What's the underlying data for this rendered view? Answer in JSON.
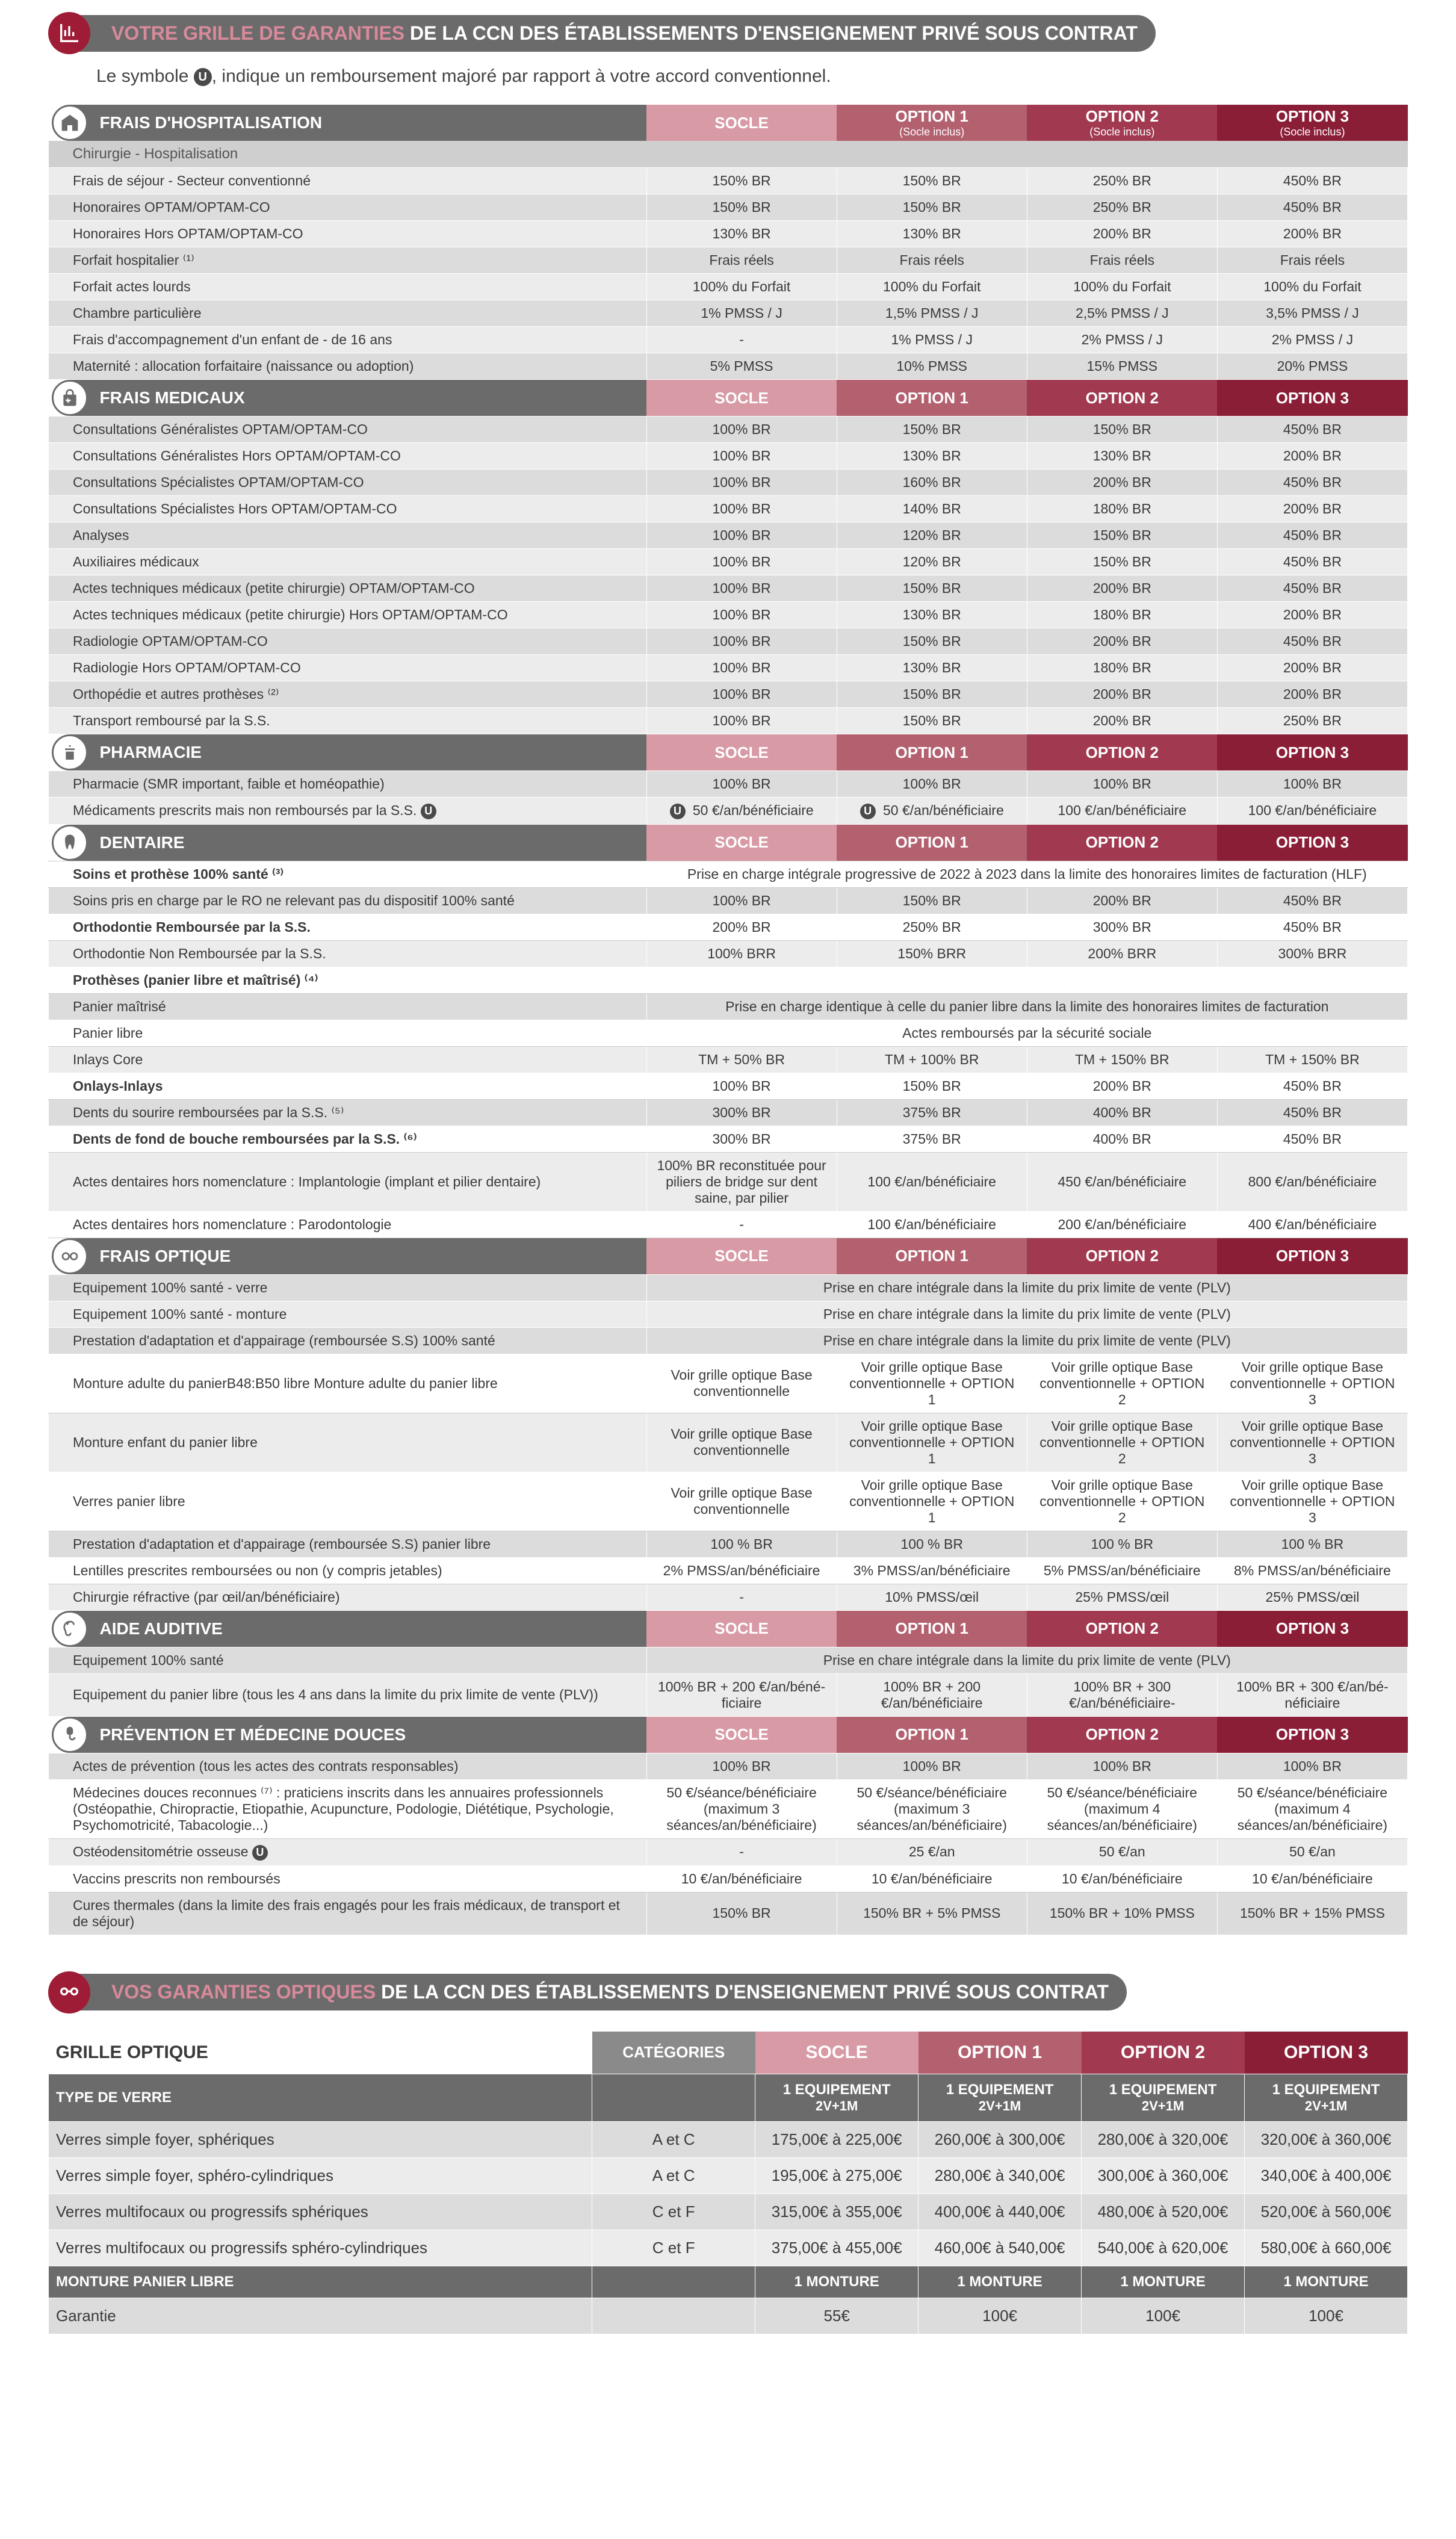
{
  "title1_prefix": "VOTRE GRILLE DE GARANTIES",
  "title1_suffix": " DE LA CCN DES ÉTABLISSEMENTS D'ENSEIGNEMENT PRIVÉ SOUS CONTRAT",
  "subtitle_pre": "Le symbole ",
  "subtitle_post": ", indique un remboursement majoré par rapport à votre accord conventionnel.",
  "headers": {
    "socle": "SOCLE",
    "o1": "OPTION 1",
    "o1_sub": "(Socle inclus)",
    "o2": "OPTION 2",
    "o2_sub": "(Socle inclus)",
    "o3": "OPTION 3",
    "o3_sub": "(Socle inclus)"
  },
  "hosp": {
    "title": "FRAIS D'HOSPITALISATION",
    "sub": "Chirurgie - Hospitalisation",
    "rows": [
      {
        "l": "Frais de séjour - Secteur conventionné",
        "v": [
          "150% BR",
          "150% BR",
          "250% BR",
          "450% BR"
        ]
      },
      {
        "l": "Honoraires OPTAM/OPTAM-CO",
        "v": [
          "150% BR",
          "150% BR",
          "250% BR",
          "450% BR"
        ]
      },
      {
        "l": "Honoraires Hors OPTAM/OPTAM-CO",
        "v": [
          "130% BR",
          "130% BR",
          "200% BR",
          "200% BR"
        ]
      },
      {
        "l": "Forfait hospitalier ⁽¹⁾",
        "v": [
          "Frais réels",
          "Frais réels",
          "Frais réels",
          "Frais réels"
        ]
      },
      {
        "l": "Forfait actes lourds",
        "v": [
          "100% du Forfait",
          "100% du Forfait",
          "100% du Forfait",
          "100% du Forfait"
        ]
      },
      {
        "l": "Chambre particulière",
        "v": [
          "1% PMSS / J",
          "1,5% PMSS / J",
          "2,5% PMSS / J",
          "3,5% PMSS / J"
        ]
      },
      {
        "l": "Frais d'accompagnement d'un enfant de - de 16 ans",
        "v": [
          "-",
          "1% PMSS / J",
          "2% PMSS / J",
          "2% PMSS / J"
        ]
      },
      {
        "l": "Maternité : allocation forfaitaire (naissance ou adoption)",
        "v": [
          "5% PMSS",
          "10% PMSS",
          "15% PMSS",
          "20% PMSS"
        ]
      }
    ]
  },
  "med": {
    "title": "FRAIS MEDICAUX",
    "rows": [
      {
        "l": "Consultations Généralistes OPTAM/OPTAM-CO",
        "v": [
          "100% BR",
          "150% BR",
          "150% BR",
          "450% BR"
        ]
      },
      {
        "l": "Consultations Généralistes Hors OPTAM/OPTAM-CO",
        "v": [
          "100% BR",
          "130% BR",
          "130% BR",
          "200% BR"
        ]
      },
      {
        "l": "Consultations Spécialistes OPTAM/OPTAM-CO",
        "v": [
          "100% BR",
          "160% BR",
          "200% BR",
          "450% BR"
        ]
      },
      {
        "l": "Consultations Spécialistes Hors OPTAM/OPTAM-CO",
        "v": [
          "100% BR",
          "140% BR",
          "180% BR",
          "200% BR"
        ]
      },
      {
        "l": "Analyses",
        "v": [
          "100% BR",
          "120% BR",
          "150% BR",
          "450% BR"
        ]
      },
      {
        "l": "Auxiliaires médicaux",
        "v": [
          "100% BR",
          "120% BR",
          "150% BR",
          "450% BR"
        ]
      },
      {
        "l": "Actes techniques médicaux (petite chirurgie) OPTAM/OPTAM-CO",
        "v": [
          "100% BR",
          "150% BR",
          "200% BR",
          "450% BR"
        ]
      },
      {
        "l": "Actes techniques médicaux (petite chirurgie) Hors OPTAM/OPTAM-CO",
        "v": [
          "100% BR",
          "130% BR",
          "180% BR",
          "200% BR"
        ]
      },
      {
        "l": "Radiologie OPTAM/OPTAM-CO",
        "v": [
          "100% BR",
          "150% BR",
          "200% BR",
          "450% BR"
        ]
      },
      {
        "l": "Radiologie Hors OPTAM/OPTAM-CO",
        "v": [
          "100% BR",
          "130% BR",
          "180% BR",
          "200% BR"
        ]
      },
      {
        "l": "Orthopédie et autres prothèses ⁽²⁾",
        "v": [
          "100% BR",
          "150% BR",
          "200% BR",
          "200% BR"
        ]
      },
      {
        "l": "Transport remboursé par la S.S.",
        "v": [
          "100% BR",
          "150% BR",
          "200% BR",
          "250% BR"
        ]
      }
    ]
  },
  "pharm": {
    "title": "PHARMACIE",
    "rows": [
      {
        "l": "Pharmacie (SMR important, faible et homéopathie)",
        "v": [
          "100% BR",
          "100% BR",
          "100% BR",
          "100% BR"
        ]
      },
      {
        "l": "Médicaments prescrits mais non remboursés par la S.S.",
        "u": true,
        "v": [
          "50 €/an/bénéficiaire",
          "50 €/an/bénéficiaire",
          "100 €/an/bénéficiaire",
          "100 €/an/bénéficiaire"
        ],
        "ucols": [
          true,
          true,
          false,
          false
        ]
      }
    ]
  },
  "dent": {
    "title": "DENTAIRE",
    "rows": [
      {
        "l": "Soins et prothèse 100% santé ⁽³⁾",
        "span": "Prise en charge intégrale progressive de 2022 à 2023 dans la limite des honoraires limites de facturation (HLF)",
        "white": true,
        "bold": true
      },
      {
        "l": "Soins pris en charge par le RO ne relevant pas du dispositif 100% santé",
        "v": [
          "100% BR",
          "150% BR",
          "200% BR",
          "450% BR"
        ]
      },
      {
        "l": "Orthodontie Remboursée par la S.S.",
        "v": [
          "200% BR",
          "250% BR",
          "300% BR",
          "450% BR"
        ],
        "white": true,
        "bold": true
      },
      {
        "l": "Orthodontie Non Remboursée par la S.S.",
        "v": [
          "100% BRR",
          "150% BRR",
          "200% BRR",
          "300% BRR"
        ]
      },
      {
        "l": "Prothèses (panier libre et maîtrisé) ⁽⁴⁾",
        "white": true,
        "bold": true,
        "empty": true
      },
      {
        "l": "Panier maîtrisé",
        "span": "Prise en charge identique à celle du panier libre dans la limite des honoraires limites de facturation"
      },
      {
        "l": "Panier libre",
        "span": "Actes remboursés par la sécurité sociale",
        "white": true
      },
      {
        "l": "Inlays Core",
        "v": [
          "TM + 50% BR",
          "TM + 100% BR",
          "TM + 150% BR",
          "TM + 150% BR"
        ]
      },
      {
        "l": "Onlays-Inlays",
        "v": [
          "100% BR",
          "150% BR",
          "200% BR",
          "450% BR"
        ],
        "white": true,
        "bold": true
      },
      {
        "l": "Dents du sourire remboursées par la S.S. ⁽⁵⁾",
        "v": [
          "300% BR",
          "375% BR",
          "400% BR",
          "450% BR"
        ]
      },
      {
        "l": "Dents de fond de bouche remboursées par la S.S. ⁽⁶⁾",
        "v": [
          "300% BR",
          "375% BR",
          "400% BR",
          "450% BR"
        ],
        "white": true,
        "bold": true
      },
      {
        "l": "Actes dentaires hors nomenclature : Implantologie (implant et pilier dentaire)",
        "v": [
          "100% BR reconstituée pour piliers de bridge sur dent saine, par pilier",
          "100 €/an/bénéficiaire",
          "450 €/an/bénéficiaire",
          "800 €/an/bénéficiaire"
        ]
      },
      {
        "l": "Actes dentaires hors nomenclature : Parodontologie",
        "v": [
          "-",
          "100 €/an/bénéficiaire",
          "200 €/an/bénéficiaire",
          "400 €/an/bénéficiaire"
        ],
        "white": true
      }
    ]
  },
  "opt": {
    "title": "FRAIS OPTIQUE",
    "rows": [
      {
        "l": "Equipement 100% santé - verre",
        "span": "Prise en chare intégrale dans la limite du prix limite de vente (PLV)"
      },
      {
        "l": "Equipement 100% santé - monture",
        "span": "Prise en chare intégrale dans la limite du prix limite de vente (PLV)"
      },
      {
        "l": "Prestation d'adaptation et d'appairage (remboursée S.S) 100% santé",
        "span": "Prise en chare intégrale dans la limite du prix limite de vente (PLV)"
      },
      {
        "l": "Monture adulte du panierB48:B50 libre Monture adulte du panier libre",
        "v": [
          "Voir grille optique Base conventionnelle",
          "Voir grille optique Base conventionnelle + OPTION 1",
          "Voir grille optique Base conventionnelle + OPTION 2",
          "Voir grille optique Base conventionnelle + OPTION 3"
        ],
        "white": true
      },
      {
        "l": "Monture enfant du panier libre",
        "v": [
          "Voir grille optique Base conventionnelle",
          "Voir grille optique Base conventionnelle + OPTION 1",
          "Voir grille optique Base conventionnelle + OPTION 2",
          "Voir grille optique Base conventionnelle + OPTION 3"
        ]
      },
      {
        "l": "Verres panier libre",
        "v": [
          "Voir grille optique Base conventionnelle",
          "Voir grille optique Base conventionnelle + OPTION 1",
          "Voir grille optique Base conventionnelle + OPTION 2",
          "Voir grille optique Base conventionnelle + OPTION 3"
        ],
        "white": true
      },
      {
        "l": "Prestation d'adaptation et d'appairage (remboursée S.S) panier libre",
        "v": [
          "100 % BR",
          "100 % BR",
          "100 % BR",
          "100 % BR"
        ]
      },
      {
        "l": "Lentilles prescrites remboursées ou non (y compris jetables)",
        "v": [
          "2% PMSS/an/bénéficiaire",
          "3% PMSS/an/bénéficiaire",
          "5% PMSS/an/bénéficiaire",
          "8% PMSS/an/bénéficiaire"
        ],
        "white": true
      },
      {
        "l": "Chirurgie réfractive (par œil/an/bénéficiaire)",
        "v": [
          "-",
          "10% PMSS/œil",
          "25% PMSS/œil",
          "25% PMSS/œil"
        ]
      }
    ]
  },
  "aud": {
    "title": "AIDE AUDITIVE",
    "rows": [
      {
        "l": "Equipement 100% santé",
        "span": "Prise en chare intégrale dans la limite du prix limite de vente (PLV)"
      },
      {
        "l": "Equipement du panier libre (tous les 4 ans dans la limite du prix limite de vente (PLV))",
        "v": [
          "100% BR + 200 €/an/béné-ficiaire",
          "100% BR + 200 €/an/bénéficiaire",
          "100% BR + 300 €/an/bénéficiaire-",
          "100% BR + 300 €/an/bé-néficiaire"
        ]
      }
    ]
  },
  "prev": {
    "title": "PRÉVENTION ET MÉDECINE DOUCES",
    "rows": [
      {
        "l": "Actes de prévention (tous les actes des contrats responsables)",
        "v": [
          "100% BR",
          "100% BR",
          "100% BR",
          "100% BR"
        ]
      },
      {
        "l": "Médecines douces reconnues ⁽⁷⁾ : praticiens inscrits dans les annuaires professionnels (Ostéopathie, Chiropractie, Etiopathie, Acupuncture, Podologie, Diététique, Psychologie, Psychomotricité, Tabacologie...)",
        "v": [
          "50 €/séance/bénéficiaire (maximum 3 séances/an/bénéficiaire)",
          "50 €/séance/bénéficiaire (maximum 3 séances/an/bénéficiaire)",
          "50 €/séance/bénéficiaire (maximum 4 séances/an/bénéficiaire)",
          "50 €/séance/bénéficiaire (maximum 4 séances/an/bénéficiaire)"
        ],
        "white": true
      },
      {
        "l": "Ostéodensitométrie osseuse",
        "u": true,
        "v": [
          "-",
          "25 €/an",
          "50 €/an",
          "50 €/an"
        ]
      },
      {
        "l": "Vaccins prescrits non remboursés",
        "v": [
          "10 €/an/bénéficiaire",
          "10 €/an/bénéficiaire",
          "10 €/an/bénéficiaire",
          "10 €/an/bénéficiaire"
        ],
        "white": true
      },
      {
        "l": "Cures thermales (dans la limite des frais engagés pour les frais médicaux, de transport et de séjour)",
        "v": [
          "150% BR",
          "150% BR + 5% PMSS",
          "150% BR + 10% PMSS",
          "150% BR + 15% PMSS"
        ]
      }
    ]
  },
  "title2_prefix": "VOS GARANTIES OPTIQUES",
  "title2_suffix": " DE LA CCN DES ÉTABLISSEMENTS D'ENSEIGNEMENT PRIVÉ SOUS CONTRAT",
  "optgrid": {
    "h1_label": "GRILLE OPTIQUE",
    "h1_cat": "CATÉGORIES",
    "h2_type": "TYPE DE VERRE",
    "h2_equip": "1 EQUIPEMENT",
    "h2_equip_sub": "2V+1M",
    "rows_verre": [
      {
        "l": "Verres simple foyer, sphériques",
        "cat": "A et C",
        "v": [
          "175,00€ à 225,00€",
          "260,00€ à 300,00€",
          "280,00€ à 320,00€",
          "320,00€ à 360,00€"
        ]
      },
      {
        "l": "Verres simple foyer, sphéro-cylindriques",
        "cat": "A et C",
        "v": [
          "195,00€ à 275,00€",
          "280,00€ à 340,00€",
          "300,00€ à 360,00€",
          "340,00€ à 400,00€"
        ]
      },
      {
        "l": "Verres multifocaux ou progressifs sphériques",
        "cat": "C et F",
        "v": [
          "315,00€ à 355,00€",
          "400,00€ à 440,00€",
          "480,00€ à 520,00€",
          "520,00€ à 560,00€"
        ]
      },
      {
        "l": "Verres multifocaux ou progressifs sphéro-cylindriques",
        "cat": "C et F",
        "v": [
          "375,00€ à 455,00€",
          "460,00€ à 540,00€",
          "540,00€ à 620,00€",
          "580,00€ à 660,00€"
        ]
      }
    ],
    "h3_monture": "MONTURE PANIER LIBRE",
    "h3_val": "1 MONTURE",
    "garantie_label": "Garantie",
    "garantie_v": [
      "55€",
      "100€",
      "100€",
      "100€"
    ]
  },
  "colors": {
    "socle": "#d89aa5",
    "o1": "#b3606f",
    "o2": "#a13a50",
    "o3": "#8a1e36"
  }
}
